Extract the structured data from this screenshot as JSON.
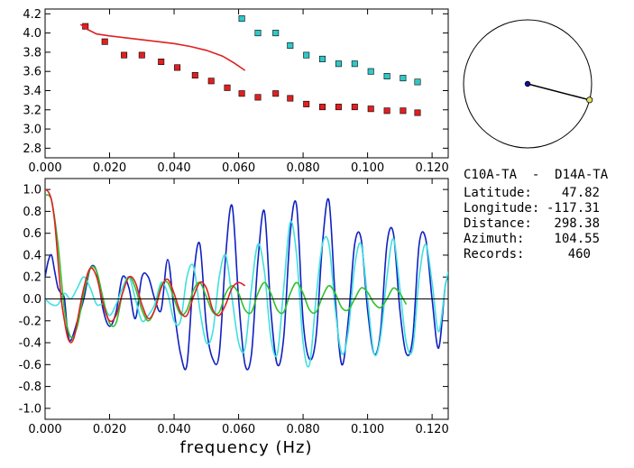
{
  "info": {
    "pair": "C10A-TA  -  D14A-TA",
    "rows": [
      {
        "label": "Latitude:",
        "value": "47.82"
      },
      {
        "label": "Longitude:",
        "value": "-117.31"
      },
      {
        "label": "Distance:",
        "value": "298.38"
      },
      {
        "label": "Azimuth:",
        "value": "104.55"
      },
      {
        "label": "Records:",
        "value": "460"
      }
    ]
  },
  "azimuth_plot": {
    "azimuth_deg": 104.55,
    "center_color": "#1010a0",
    "end_color": "#e0e060"
  },
  "chart_data": [
    {
      "type": "scatter",
      "title": "",
      "xlabel": "",
      "ylabel": "",
      "xlim": [
        0.0,
        0.125
      ],
      "ylim": [
        2.7,
        4.25
      ],
      "xticks": [
        "0.000",
        "0.020",
        "0.040",
        "0.060",
        "0.080",
        "0.100",
        "0.120"
      ],
      "yticks": [
        "2.8",
        "3.0",
        "3.2",
        "3.4",
        "3.6",
        "3.8",
        "4.0",
        "4.2"
      ],
      "series": [
        {
          "color": "#e02020",
          "marker": "square",
          "points": [
            [
              0.0125,
              4.07
            ],
            [
              0.0185,
              3.91
            ],
            [
              0.0245,
              3.77
            ],
            [
              0.03,
              3.77
            ],
            [
              0.036,
              3.7
            ],
            [
              0.041,
              3.64
            ],
            [
              0.0465,
              3.56
            ],
            [
              0.0515,
              3.5
            ],
            [
              0.0565,
              3.43
            ],
            [
              0.061,
              3.37
            ],
            [
              0.066,
              3.33
            ],
            [
              0.0715,
              3.37
            ],
            [
              0.076,
              3.32
            ],
            [
              0.081,
              3.26
            ],
            [
              0.086,
              3.23
            ],
            [
              0.091,
              3.23
            ],
            [
              0.096,
              3.23
            ],
            [
              0.101,
              3.21
            ],
            [
              0.106,
              3.19
            ],
            [
              0.111,
              3.19
            ],
            [
              0.1155,
              3.17
            ]
          ]
        },
        {
          "color": "#30c8c8",
          "marker": "square",
          "points": [
            [
              0.061,
              4.15
            ],
            [
              0.066,
              4.0
            ],
            [
              0.0715,
              4.0
            ],
            [
              0.076,
              3.87
            ],
            [
              0.081,
              3.77
            ],
            [
              0.086,
              3.73
            ],
            [
              0.091,
              3.68
            ],
            [
              0.096,
              3.68
            ],
            [
              0.101,
              3.6
            ],
            [
              0.106,
              3.55
            ],
            [
              0.111,
              3.53
            ],
            [
              0.1155,
              3.49
            ]
          ]
        },
        {
          "color": "#e02020",
          "marker": "line",
          "points": [
            [
              0.011,
              4.09
            ],
            [
              0.013,
              4.04
            ],
            [
              0.016,
              3.99
            ],
            [
              0.02,
              3.97
            ],
            [
              0.025,
              3.95
            ],
            [
              0.03,
              3.93
            ],
            [
              0.035,
              3.91
            ],
            [
              0.04,
              3.89
            ],
            [
              0.045,
              3.86
            ],
            [
              0.05,
              3.82
            ],
            [
              0.055,
              3.76
            ],
            [
              0.0585,
              3.69
            ],
            [
              0.062,
              3.61
            ]
          ]
        }
      ]
    },
    {
      "type": "line",
      "title": "",
      "xlabel": "frequency (Hz)",
      "ylabel": "",
      "xlim": [
        0.0,
        0.125
      ],
      "ylim": [
        -1.1,
        1.1
      ],
      "xticks": [
        "0.000",
        "0.020",
        "0.040",
        "0.060",
        "0.080",
        "0.100",
        "0.120"
      ],
      "yticks": [
        "-1.0",
        "-0.8",
        "-0.6",
        "-0.4",
        "-0.2",
        "0.0",
        "0.2",
        "0.4",
        "0.6",
        "0.8",
        "1.0"
      ],
      "zero_line": true,
      "series": [
        {
          "color": "#1020c0",
          "x": [
            0.0,
            0.001,
            0.002,
            0.003,
            0.004,
            0.005,
            0.006,
            0.007,
            0.008,
            0.01,
            0.012,
            0.014,
            0.016,
            0.018,
            0.02,
            0.022,
            0.024,
            0.026,
            0.028,
            0.03,
            0.032,
            0.034,
            0.036,
            0.038,
            0.04,
            0.042,
            0.044,
            0.046,
            0.048,
            0.05,
            0.052,
            0.054,
            0.056,
            0.058,
            0.06,
            0.062,
            0.064,
            0.066,
            0.068,
            0.07,
            0.072,
            0.074,
            0.076,
            0.078,
            0.08,
            0.082,
            0.084,
            0.086,
            0.088,
            0.09,
            0.092,
            0.094,
            0.096,
            0.098,
            0.1,
            0.102,
            0.104,
            0.106,
            0.108,
            0.11,
            0.112,
            0.114,
            0.116,
            0.118,
            0.12,
            0.122,
            0.124,
            0.125
          ],
          "y": [
            0.2,
            0.35,
            0.4,
            0.25,
            0.1,
            0.05,
            0.0,
            -0.3,
            -0.38,
            -0.2,
            0.0,
            0.28,
            0.25,
            -0.1,
            -0.25,
            -0.12,
            0.2,
            0.1,
            -0.18,
            0.2,
            0.2,
            0.0,
            -0.1,
            0.36,
            -0.1,
            -0.5,
            -0.6,
            0.2,
            0.5,
            -0.25,
            -0.55,
            -0.5,
            0.4,
            0.85,
            0.0,
            -0.6,
            -0.5,
            0.35,
            0.8,
            -0.1,
            -0.6,
            -0.35,
            0.6,
            0.85,
            -0.2,
            -0.55,
            -0.35,
            0.5,
            0.9,
            0.0,
            -0.6,
            -0.2,
            0.5,
            0.55,
            -0.1,
            -0.5,
            -0.3,
            0.5,
            0.6,
            -0.1,
            -0.5,
            -0.35,
            0.5,
            0.55,
            0.0,
            -0.45,
            0.1,
            0.2
          ]
        },
        {
          "color": "#40e0e0",
          "x": [
            0.0,
            0.002,
            0.004,
            0.006,
            0.008,
            0.01,
            0.012,
            0.014,
            0.016,
            0.018,
            0.02,
            0.022,
            0.024,
            0.026,
            0.028,
            0.03,
            0.032,
            0.034,
            0.036,
            0.038,
            0.04,
            0.042,
            0.044,
            0.046,
            0.048,
            0.05,
            0.052,
            0.054,
            0.056,
            0.058,
            0.06,
            0.062,
            0.064,
            0.066,
            0.068,
            0.07,
            0.072,
            0.074,
            0.076,
            0.078,
            0.08,
            0.082,
            0.084,
            0.086,
            0.088,
            0.09,
            0.092,
            0.094,
            0.096,
            0.098,
            0.1,
            0.102,
            0.104,
            0.106,
            0.108,
            0.11,
            0.112,
            0.114,
            0.116,
            0.118,
            0.12,
            0.122,
            0.124,
            0.125
          ],
          "y": [
            0.0,
            -0.05,
            -0.05,
            0.05,
            0.0,
            0.1,
            0.2,
            0.1,
            -0.05,
            -0.05,
            -0.15,
            -0.05,
            0.1,
            0.2,
            0.0,
            -0.2,
            -0.15,
            -0.05,
            0.15,
            0.05,
            -0.2,
            -0.2,
            0.2,
            0.3,
            -0.1,
            -0.4,
            -0.3,
            0.2,
            0.4,
            0.0,
            -0.4,
            -0.45,
            0.1,
            0.5,
            0.25,
            -0.35,
            -0.5,
            0.1,
            0.7,
            0.4,
            -0.4,
            -0.6,
            0.0,
            0.5,
            0.5,
            -0.1,
            -0.5,
            -0.3,
            0.3,
            0.5,
            0.0,
            -0.5,
            -0.35,
            0.2,
            0.55,
            0.1,
            -0.4,
            -0.45,
            0.2,
            0.5,
            0.15,
            -0.3,
            0.1,
            0.25
          ]
        },
        {
          "color": "#30c030",
          "x": [
            0.0,
            0.002,
            0.004,
            0.006,
            0.008,
            0.01,
            0.012,
            0.014,
            0.016,
            0.018,
            0.02,
            0.022,
            0.024,
            0.026,
            0.028,
            0.03,
            0.032,
            0.034,
            0.036,
            0.038,
            0.04,
            0.042,
            0.044,
            0.046,
            0.048,
            0.05,
            0.052,
            0.054,
            0.056,
            0.058,
            0.06,
            0.062,
            0.064,
            0.066,
            0.068,
            0.07,
            0.072,
            0.074,
            0.076,
            0.078,
            0.08,
            0.082,
            0.084,
            0.086,
            0.088,
            0.09,
            0.092,
            0.094,
            0.096,
            0.098,
            0.1,
            0.102,
            0.104,
            0.106,
            0.108,
            0.11,
            0.112
          ],
          "y": [
            0.95,
            0.9,
            0.5,
            -0.1,
            -0.35,
            -0.25,
            0.05,
            0.28,
            0.25,
            0.0,
            -0.22,
            -0.22,
            0.05,
            0.2,
            0.1,
            -0.1,
            -0.2,
            -0.1,
            0.12,
            0.15,
            0.0,
            -0.14,
            -0.1,
            0.08,
            0.15,
            0.02,
            -0.12,
            -0.12,
            0.05,
            0.12,
            0.05,
            -0.1,
            -0.12,
            0.05,
            0.15,
            0.05,
            -0.1,
            -0.12,
            0.05,
            0.15,
            0.05,
            -0.1,
            -0.12,
            0.02,
            0.12,
            0.05,
            -0.08,
            -0.1,
            0.0,
            0.1,
            0.06,
            -0.04,
            -0.08,
            0.0,
            0.1,
            0.05,
            -0.05
          ]
        },
        {
          "color": "#e02020",
          "x": [
            0.0,
            0.001,
            0.002,
            0.003,
            0.004,
            0.005,
            0.006,
            0.007,
            0.008,
            0.009,
            0.01,
            0.012,
            0.014,
            0.016,
            0.018,
            0.02,
            0.022,
            0.024,
            0.026,
            0.028,
            0.03,
            0.032,
            0.034,
            0.036,
            0.038,
            0.04,
            0.042,
            0.044,
            0.046,
            0.048,
            0.05,
            0.052,
            0.054,
            0.056,
            0.058,
            0.06,
            0.062
          ],
          "y": [
            1.0,
            0.98,
            0.9,
            0.7,
            0.35,
            0.0,
            -0.2,
            -0.35,
            -0.4,
            -0.35,
            -0.2,
            0.1,
            0.28,
            0.2,
            -0.05,
            -0.2,
            -0.15,
            0.05,
            0.2,
            0.15,
            -0.05,
            -0.18,
            -0.1,
            0.1,
            0.18,
            0.05,
            -0.12,
            -0.15,
            0.02,
            0.15,
            0.1,
            -0.1,
            -0.15,
            -0.05,
            0.1,
            0.15,
            0.12
          ]
        }
      ]
    }
  ]
}
